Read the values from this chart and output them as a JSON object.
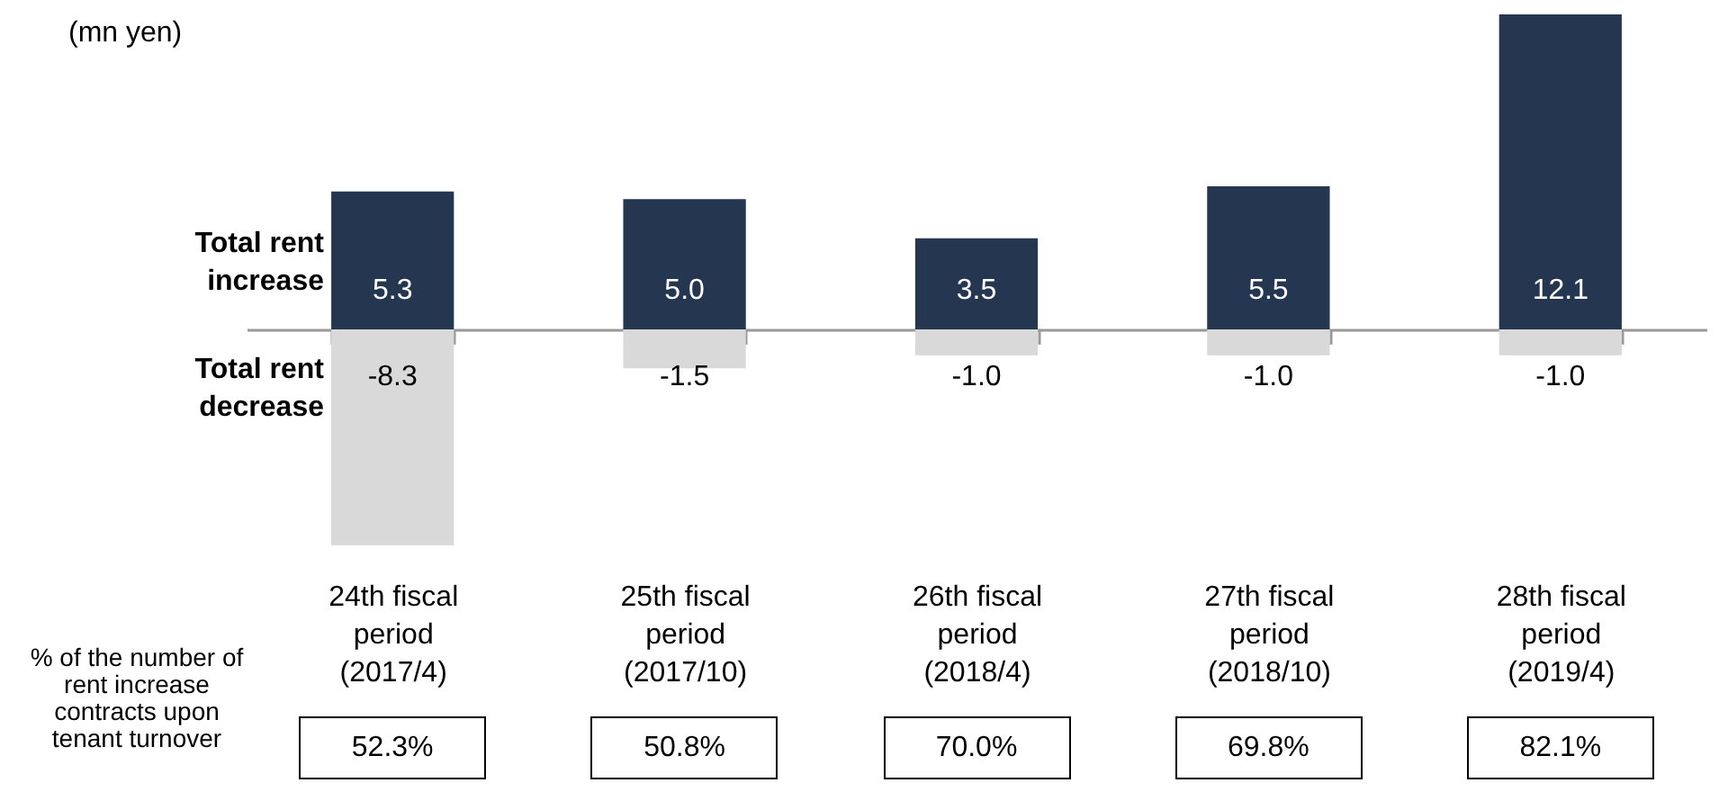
{
  "chart_data": {
    "type": "bar",
    "ylabel": "(mn yen)",
    "categories": [
      "24th fiscal period (2017/4)",
      "25th fiscal period (2017/10)",
      "26th fiscal period (2018/4)",
      "27th fiscal period (2018/10)",
      "28th fiscal period (2019/4)"
    ],
    "stacked": true,
    "series": [
      {
        "name": "Total rent increase",
        "color": "#253750",
        "values": [
          5.3,
          5.0,
          3.5,
          5.5,
          12.1
        ],
        "value_labels": [
          "5.3",
          "5.0",
          "3.5",
          "5.5",
          "12.1"
        ]
      },
      {
        "name": "Total rent decrease",
        "color": "#d9d9d9",
        "values": [
          -8.3,
          -1.5,
          -1.0,
          -1.0,
          -1.0
        ],
        "value_labels": [
          "-8.3",
          "-1.5",
          "-1.0",
          "-1.0",
          "-1.0"
        ]
      }
    ],
    "annotations": [
      "% of the number of rent increase contracts upon tenant turnover",
      "52.3%",
      "50.8%",
      "70.0%",
      "69.8%",
      "82.1%"
    ]
  }
}
